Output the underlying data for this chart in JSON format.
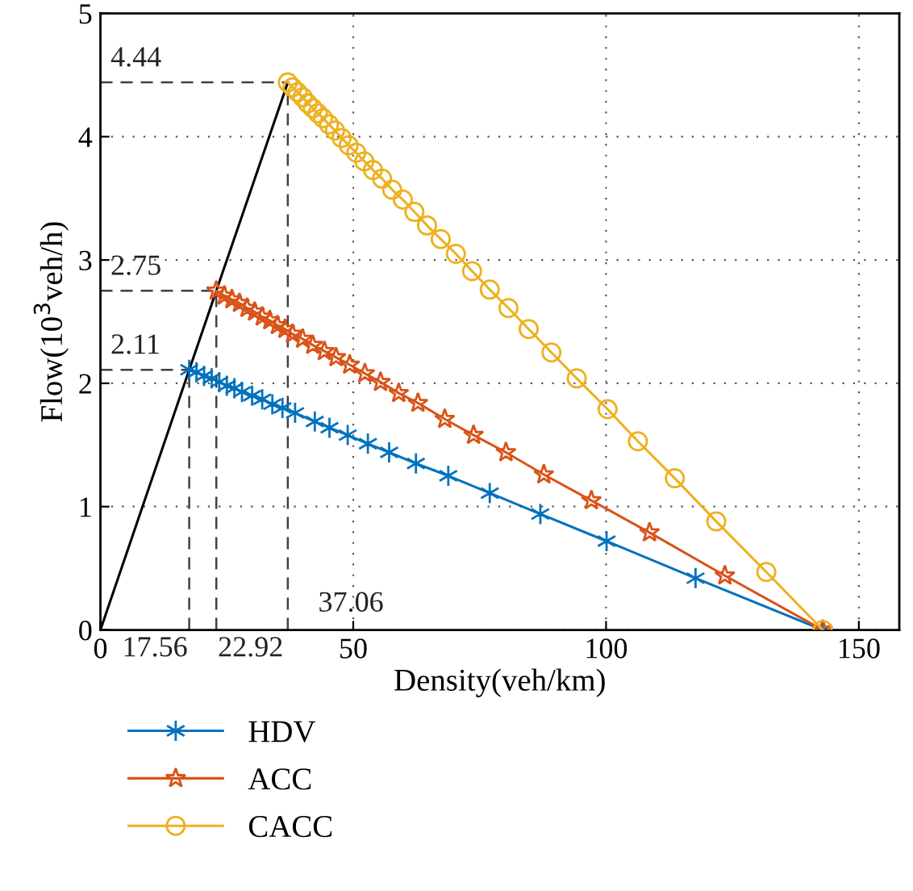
{
  "chart_data": {
    "type": "line",
    "xlabel": "Density(veh/km)",
    "ylabel": "Flow(10$^{3}$veh/h)",
    "xlim": [
      0,
      158
    ],
    "ylim": [
      0,
      5
    ],
    "xticks": [
      0,
      50,
      100,
      150
    ],
    "yticks": [
      0,
      1,
      2,
      3,
      4,
      5
    ],
    "grid": true,
    "legend": "bottom",
    "line_style": "solid",
    "series": [
      {
        "name": "HDV",
        "color": "#0072bd",
        "marker": "cross",
        "x": [
          17.56,
          19,
          20.5,
          22,
          23.5,
          25,
          26.5,
          28,
          30,
          32,
          34,
          36,
          38.5,
          42.4,
          45.3,
          48.9,
          52.9,
          57.1,
          62.4,
          68.8,
          77.0,
          87.0,
          100.1,
          117.7,
          142.86
        ],
        "values": [
          2.11,
          2.09,
          2.06,
          2.04,
          2.01,
          1.98,
          1.96,
          1.93,
          1.9,
          1.87,
          1.83,
          1.8,
          1.76,
          1.69,
          1.64,
          1.58,
          1.51,
          1.44,
          1.35,
          1.25,
          1.11,
          0.94,
          0.72,
          0.42,
          0
        ]
      },
      {
        "name": "ACC",
        "color": "#d95319",
        "marker": "star",
        "x": [
          22.92,
          24.5,
          26,
          27.5,
          29,
          30.5,
          32,
          33.5,
          35,
          36.5,
          38,
          40,
          42,
          44.3,
          46.6,
          49.3,
          52.3,
          55.4,
          59.0,
          62.8,
          68.1,
          73.8,
          80.2,
          87.7,
          97.1,
          108.6,
          123.5,
          142.86
        ],
        "values": [
          2.75,
          2.71,
          2.68,
          2.65,
          2.61,
          2.58,
          2.54,
          2.51,
          2.47,
          2.44,
          2.4,
          2.36,
          2.31,
          2.26,
          2.21,
          2.15,
          2.08,
          2.01,
          1.92,
          1.84,
          1.71,
          1.58,
          1.44,
          1.26,
          1.05,
          0.79,
          0.44,
          0
        ]
      },
      {
        "name": "CACC",
        "color": "#edb120",
        "marker": "circle",
        "x": [
          37.06,
          38,
          39,
          40,
          41,
          42,
          43,
          44,
          45.2,
          46.4,
          47.7,
          49.1,
          50.6,
          52.2,
          53.9,
          55.7,
          57.7,
          59.8,
          62.1,
          64.6,
          67.3,
          70.3,
          73.5,
          77.0,
          80.7,
          84.7,
          89.2,
          94.2,
          100.3,
          106.3,
          113.6,
          121.8,
          131.7,
          142.86
        ],
        "values": [
          4.44,
          4.4,
          4.36,
          4.32,
          4.27,
          4.23,
          4.19,
          4.15,
          4.1,
          4.05,
          3.99,
          3.93,
          3.87,
          3.8,
          3.73,
          3.66,
          3.57,
          3.49,
          3.39,
          3.28,
          3.17,
          3.05,
          2.91,
          2.76,
          2.61,
          2.44,
          2.25,
          2.04,
          1.79,
          1.53,
          1.23,
          0.88,
          0.47,
          0
        ]
      },
      {
        "color": "#000000",
        "marker": "none",
        "x": [
          0,
          17.56,
          22.92,
          37.06
        ],
        "values": [
          0,
          2.11,
          2.75,
          4.44
        ]
      }
    ],
    "ref_lines": [
      {
        "axis": "y",
        "value": 4.44,
        "label": "4.44",
        "line_style": "dashed",
        "color": "#404040"
      },
      {
        "axis": "y",
        "value": 2.75,
        "label": "2.75",
        "line_style": "dashed",
        "color": "#404040"
      },
      {
        "axis": "y",
        "value": 2.11,
        "label": "2.11",
        "line_style": "dashed",
        "color": "#404040"
      },
      {
        "axis": "x",
        "value": 17.56,
        "label": "17.56",
        "line_style": "dashed",
        "color": "#404040"
      },
      {
        "axis": "x",
        "value": 22.92,
        "label": "22.92",
        "line_style": "dashed",
        "color": "#404040"
      },
      {
        "axis": "x",
        "value": 37.06,
        "label": "37.06",
        "line_style": "dashed",
        "color": "#404040"
      }
    ]
  }
}
